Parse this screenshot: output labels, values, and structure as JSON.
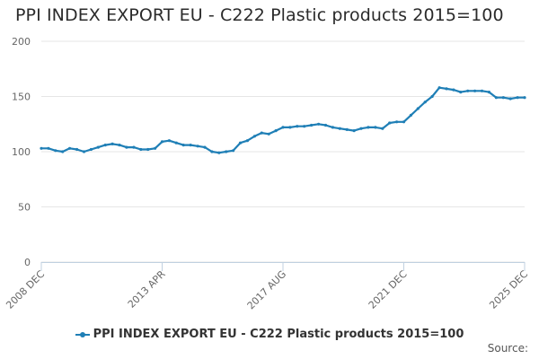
{
  "chart_data": {
    "type": "line",
    "title": "PPI INDEX EXPORT EU - C222 Plastic products 2015=100",
    "xlabel": "",
    "ylabel": "",
    "ylim": [
      0,
      200
    ],
    "y_ticks": [
      "0",
      "50",
      "100",
      "150",
      "200"
    ],
    "x_tick_labels": [
      "2008 DEC",
      "2013 APR",
      "2017 AUG",
      "2021 DEC",
      "2025 DEC"
    ],
    "x_range": [
      "2008-12",
      "2025-12"
    ],
    "grid": "horizontal",
    "legend_placement": "bottom-center",
    "color": "#1f7fb6",
    "series": [
      {
        "name": "PPI INDEX EXPORT EU - C222 Plastic products 2015=100",
        "x": [
          "2008-12",
          "2009-03",
          "2009-06",
          "2009-09",
          "2009-12",
          "2010-03",
          "2010-06",
          "2010-09",
          "2010-12",
          "2011-03",
          "2011-06",
          "2011-09",
          "2011-12",
          "2012-03",
          "2012-06",
          "2012-09",
          "2012-12",
          "2013-03",
          "2013-06",
          "2013-09",
          "2013-12",
          "2014-03",
          "2014-06",
          "2014-09",
          "2014-12",
          "2015-03",
          "2015-06",
          "2015-09",
          "2015-12",
          "2016-03",
          "2016-06",
          "2016-09",
          "2016-12",
          "2017-03",
          "2017-06",
          "2017-09",
          "2017-12",
          "2018-03",
          "2018-06",
          "2018-09",
          "2018-12",
          "2019-03",
          "2019-06",
          "2019-09",
          "2019-12",
          "2020-03",
          "2020-06",
          "2020-09",
          "2020-12",
          "2021-03",
          "2021-06",
          "2021-09",
          "2021-12",
          "2022-03",
          "2022-06",
          "2022-09",
          "2022-12",
          "2023-03",
          "2023-06",
          "2023-09",
          "2023-12",
          "2024-03",
          "2024-06",
          "2024-09",
          "2024-12",
          "2025-03",
          "2025-06",
          "2025-09",
          "2025-12"
        ],
        "values": [
          103,
          103,
          101,
          100,
          103,
          102,
          100,
          102,
          104,
          106,
          107,
          106,
          104,
          104,
          102,
          102,
          103,
          109,
          110,
          108,
          106,
          106,
          105,
          104,
          100,
          99,
          100,
          101,
          108,
          110,
          114,
          117,
          116,
          119,
          122,
          122,
          123,
          123,
          124,
          125,
          124,
          122,
          121,
          120,
          119,
          121,
          122,
          122,
          121,
          126,
          127,
          127,
          133,
          139,
          145,
          150,
          158,
          157,
          156,
          154,
          155,
          155,
          155,
          154,
          149,
          149,
          148,
          149,
          149
        ]
      }
    ]
  },
  "source_label": "Source:"
}
